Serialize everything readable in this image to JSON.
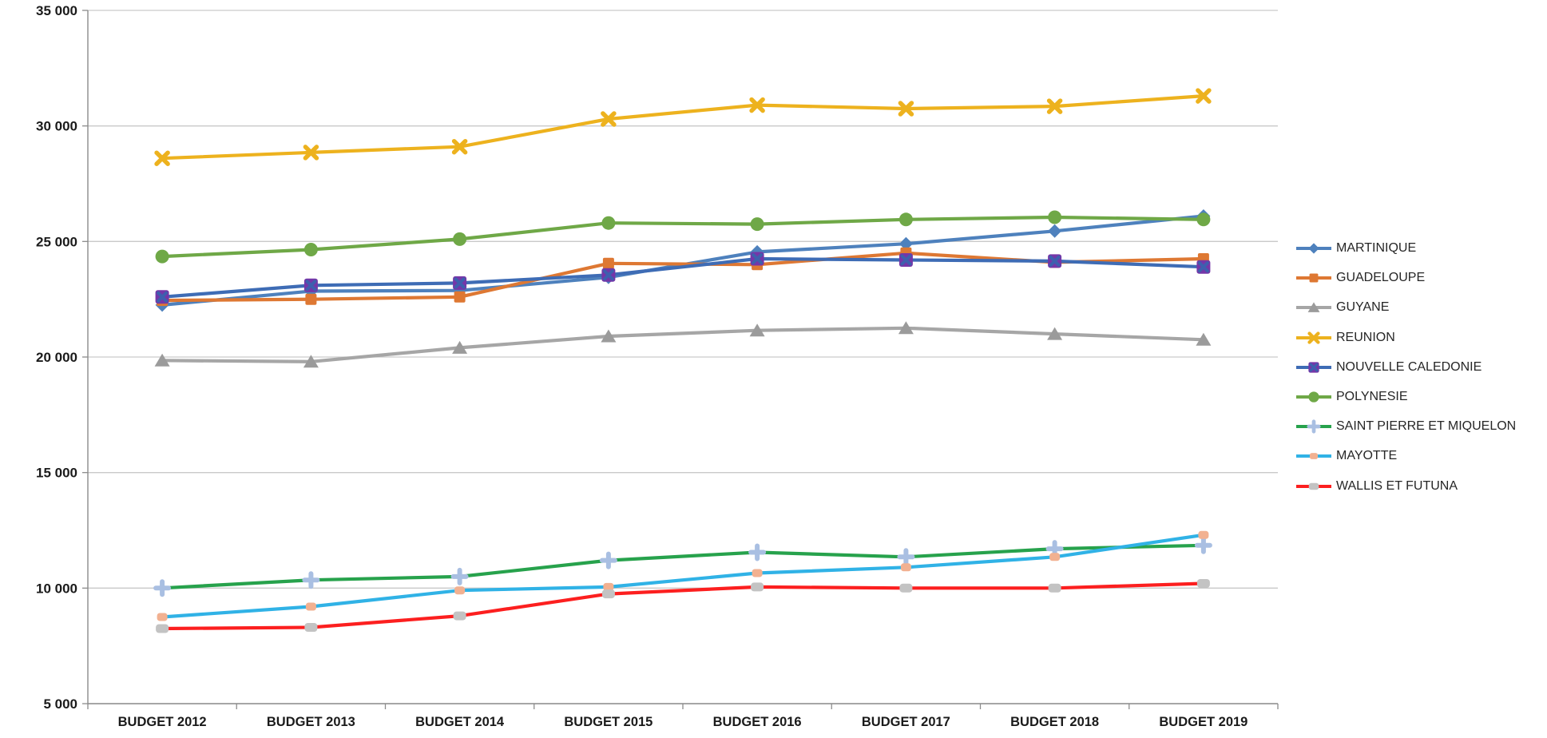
{
  "chart_data": {
    "type": "line",
    "title": "",
    "xlabel": "",
    "ylabel": "",
    "grid": true,
    "legend_position": "right",
    "ylim": [
      5000,
      35000
    ],
    "y_ticks": [
      {
        "value": 5000,
        "label": "5 000"
      },
      {
        "value": 10000,
        "label": "10 000"
      },
      {
        "value": 15000,
        "label": "15 000"
      },
      {
        "value": 20000,
        "label": "20 000"
      },
      {
        "value": 25000,
        "label": "25 000"
      },
      {
        "value": 30000,
        "label": "30 000"
      },
      {
        "value": 35000,
        "label": "35 000"
      }
    ],
    "categories": [
      "BUDGET 2012",
      "BUDGET 2013",
      "BUDGET 2014",
      "BUDGET 2015",
      "BUDGET 2016",
      "BUDGET 2017",
      "BUDGET 2018",
      "BUDGET 2019"
    ],
    "series": [
      {
        "name": "MARTINIQUE",
        "color": "#4E81BD",
        "marker": "diamond",
        "marker_color": "#4E81BD",
        "values": [
          22250,
          22850,
          22880,
          23450,
          24550,
          24900,
          25450,
          26100
        ]
      },
      {
        "name": "GUADELOUPE",
        "color": "#DE7833",
        "marker": "square",
        "marker_color": "#DE7833",
        "values": [
          22450,
          22500,
          22600,
          24050,
          24000,
          24500,
          24100,
          24250
        ]
      },
      {
        "name": "GUYANE",
        "color": "#A6A6A6",
        "marker": "triangle",
        "marker_color": "#9B9B9B",
        "values": [
          19850,
          19800,
          20400,
          20900,
          21150,
          21250,
          21000,
          20750
        ]
      },
      {
        "name": "REUNION",
        "color": "#EDB21E",
        "marker": "cross",
        "marker_color": "#EDB21E",
        "values": [
          28600,
          28850,
          29100,
          30300,
          30900,
          30750,
          30850,
          31300
        ]
      },
      {
        "name": "NOUVELLE CALEDONIE",
        "color": "#3E6CB5",
        "marker": "square-x",
        "marker_color": "#7536A8",
        "marker_accent": "#3E5FAE",
        "values": [
          22600,
          23100,
          23200,
          23550,
          24250,
          24200,
          24150,
          23900
        ]
      },
      {
        "name": "POLYNESIE",
        "color": "#6FA847",
        "marker": "circle",
        "marker_color": "#6FA847",
        "values": [
          24350,
          24650,
          25100,
          25800,
          25750,
          25950,
          26050,
          25950
        ]
      },
      {
        "name": "SAINT PIERRE ET MIQUELON",
        "color": "#27A24C",
        "marker": "plus",
        "marker_color": "#A9BFE2",
        "values": [
          10000,
          10350,
          10500,
          11200,
          11550,
          11350,
          11700,
          11850
        ]
      },
      {
        "name": "MAYOTTE",
        "color": "#30B2E6",
        "marker": "pill-sm",
        "marker_color": "#F2B191",
        "values": [
          8750,
          9200,
          9900,
          10050,
          10650,
          10900,
          11350,
          12300
        ]
      },
      {
        "name": "WALLIS ET FUTUNA",
        "color": "#FC1F1F",
        "marker": "pill",
        "marker_color": "#C3C3C3",
        "values": [
          8250,
          8300,
          8800,
          9750,
          10050,
          10000,
          10000,
          10200
        ]
      }
    ],
    "colors": {
      "gridline": "#C9C9C9",
      "axis": "#8C8C8C",
      "tick_label": "#1a1a1a",
      "legend_text": "#262626"
    }
  }
}
